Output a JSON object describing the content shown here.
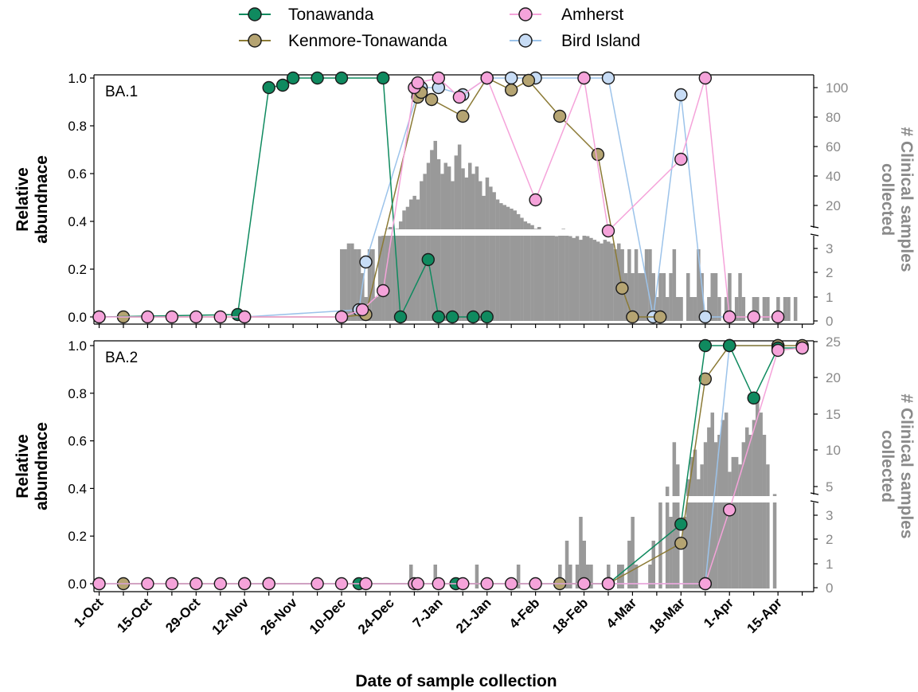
{
  "chart_data": {
    "type": "line",
    "xlabel": "Date of sample collection",
    "x_tick_labels": [
      "1-Oct",
      "15-Oct",
      "29-Oct",
      "12-Nov",
      "26-Nov",
      "10-Dec",
      "24-Dec",
      "7-Jan",
      "21-Jan",
      "4-Feb",
      "18-Feb",
      "4-Mar",
      "18-Mar",
      "1-Apr",
      "15-Apr"
    ],
    "legend": [
      {
        "name": "Tonawanda",
        "color": "#0f8a5f"
      },
      {
        "name": "Kenmore-Tonawanda",
        "color": "#b5a472"
      },
      {
        "name": "Amherst",
        "color": "#f5a3da"
      },
      {
        "name": "Bird Island",
        "color": "#c7dcf5"
      }
    ],
    "line_colors": {
      "Tonawanda": "#0f8a5f",
      "Kenmore-Tonawanda": "#8b7a35",
      "Amherst": "#f5a3da",
      "Bird Island": "#9cc3ea"
    },
    "bar_color": "#999999",
    "panels": [
      {
        "label": "BA.1",
        "ylabel_line1": "Relative",
        "ylabel_line2": "abundnace",
        "ylim": [
          0,
          1.0
        ],
        "yticks": [
          "0.0",
          "0.2",
          "0.4",
          "0.6",
          "0.8",
          "1.0"
        ],
        "right_ylabel_line1": "# Clinical samples",
        "right_ylabel_line2": "collected",
        "right_upper_ticks": [
          "20",
          "40",
          "60",
          "80",
          "100"
        ],
        "right_lower_ticks": [
          "0",
          "1",
          "2",
          "3"
        ],
        "series": [
          {
            "name": "Tonawanda",
            "points": [
              [
                0,
                0
              ],
              [
                40,
                0.01
              ],
              [
                49,
                0.96
              ],
              [
                53,
                0.97
              ],
              [
                56,
                1.0
              ],
              [
                63,
                1.0
              ],
              [
                70,
                1.0
              ],
              [
                82,
                1.0
              ],
              [
                87,
                0
              ],
              [
                95,
                0.24
              ],
              [
                98,
                0
              ],
              [
                102,
                0
              ],
              [
                108,
                0
              ],
              [
                112,
                0
              ]
            ]
          },
          {
            "name": "Kenmore-Tonawanda",
            "points": [
              [
                7,
                0
              ],
              [
                70,
                0
              ],
              [
                77,
                0.01
              ],
              [
                92,
                0.92
              ],
              [
                93,
                0.94
              ],
              [
                96,
                0.91
              ],
              [
                105,
                0.84
              ],
              [
                112,
                1.0
              ],
              [
                119,
                0.95
              ],
              [
                124,
                0.99
              ],
              [
                133,
                0.84
              ],
              [
                144,
                0.68
              ],
              [
                151,
                0.12
              ],
              [
                154,
                0
              ],
              [
                162,
                0
              ]
            ]
          },
          {
            "name": "Amherst",
            "points": [
              [
                0,
                0
              ],
              [
                14,
                0
              ],
              [
                21,
                0
              ],
              [
                28,
                0
              ],
              [
                35,
                0
              ],
              [
                42,
                0
              ],
              [
                70,
                0
              ],
              [
                76,
                0.03
              ],
              [
                82,
                0.11
              ],
              [
                91,
                0.96
              ],
              [
                92,
                0.98
              ],
              [
                98,
                1.0
              ],
              [
                104,
                0.92
              ],
              [
                112,
                1.0
              ],
              [
                126,
                0.49
              ],
              [
                140,
                1.0
              ],
              [
                147,
                0.36
              ],
              [
                168,
                0.66
              ],
              [
                175,
                1.0
              ],
              [
                182,
                0
              ],
              [
                189,
                0
              ],
              [
                196,
                0
              ]
            ]
          },
          {
            "name": "Bird Island",
            "points": [
              [
                42,
                0
              ],
              [
                75,
                0.03
              ],
              [
                77,
                0.23
              ],
              [
                92,
                0.94
              ],
              [
                93,
                0.96
              ],
              [
                98,
                0.96
              ],
              [
                105,
                0.93
              ],
              [
                112,
                1.0
              ],
              [
                119,
                1.0
              ],
              [
                126,
                1.0
              ],
              [
                140,
                1.0
              ],
              [
                147,
                1.0
              ],
              [
                160,
                0
              ],
              [
                168,
                0.93
              ],
              [
                175,
                0
              ],
              [
                182,
                0
              ]
            ]
          }
        ],
        "clinical_counts": [
          0,
          0,
          0,
          0,
          0,
          0,
          0,
          0,
          0,
          0,
          0,
          0,
          0,
          0,
          0,
          0,
          0,
          0,
          0,
          0,
          0,
          0,
          0,
          0,
          0,
          0,
          0,
          0,
          0,
          0,
          0,
          0,
          0,
          0,
          0,
          0,
          0,
          0,
          0,
          0,
          0,
          0,
          0,
          0,
          0,
          0,
          0,
          0,
          0,
          0,
          0,
          0,
          0,
          0,
          0,
          0,
          0,
          0,
          0,
          0,
          0,
          0,
          0,
          0,
          0,
          0,
          0,
          0,
          0,
          0,
          3,
          3,
          4,
          4,
          3,
          3,
          2,
          1,
          3,
          3,
          1,
          8,
          10,
          12,
          13,
          9,
          12,
          16,
          22,
          24,
          28,
          30,
          28,
          38,
          42,
          48,
          55,
          60,
          50,
          42,
          48,
          46,
          38,
          52,
          58,
          45,
          40,
          48,
          42,
          46,
          38,
          30,
          40,
          35,
          32,
          28,
          26,
          25,
          24,
          23,
          22,
          20,
          18,
          16,
          15,
          14,
          12,
          13,
          11,
          10,
          9,
          10,
          8,
          9,
          12,
          10,
          8,
          7,
          8,
          6,
          9,
          8,
          7,
          6,
          5,
          4,
          6,
          5,
          4,
          3,
          4,
          3,
          2,
          3,
          2,
          3,
          2,
          2,
          3,
          3,
          2,
          1,
          2,
          2,
          1,
          2,
          3,
          1,
          1,
          0,
          2,
          1,
          1,
          3,
          2,
          0,
          1,
          2,
          2,
          1,
          0,
          1,
          2,
          0,
          1,
          2,
          1,
          0,
          0,
          1,
          1,
          0,
          1,
          1,
          0,
          0,
          1,
          0,
          1,
          1,
          0,
          1
        ],
        "annotations": []
      },
      {
        "label": "BA.2",
        "ylabel_line1": "Relative",
        "ylabel_line2": "abundnace",
        "ylim": [
          0,
          1.0
        ],
        "yticks": [
          "0.0",
          "0.2",
          "0.4",
          "0.6",
          "0.8",
          "1.0"
        ],
        "right_ylabel_line1": "# Clinical samples",
        "right_ylabel_line2": "collected",
        "right_upper_ticks": [
          "5",
          "10",
          "15",
          "20",
          "25"
        ],
        "right_lower_ticks": [
          "0",
          "1",
          "2",
          "3"
        ],
        "series": [
          {
            "name": "Tonawanda",
            "points": [
              [
                0,
                0
              ],
              [
                49,
                0
              ],
              [
                75,
                0
              ],
              [
                103,
                0
              ],
              [
                147,
                0
              ],
              [
                168,
                0.25
              ],
              [
                175,
                1.0
              ],
              [
                182,
                1.0
              ],
              [
                189,
                0.78
              ],
              [
                196,
                0.99
              ],
              [
                203,
                0.99
              ]
            ]
          },
          {
            "name": "Kenmore-Tonawanda",
            "points": [
              [
                7,
                0
              ],
              [
                133,
                0
              ],
              [
                147,
                0
              ],
              [
                168,
                0.17
              ],
              [
                175,
                0.86
              ],
              [
                182,
                1.0
              ],
              [
                196,
                1.0
              ],
              [
                203,
                1.0
              ]
            ]
          },
          {
            "name": "Amherst",
            "points": [
              [
                0,
                0
              ],
              [
                14,
                0
              ],
              [
                21,
                0
              ],
              [
                28,
                0
              ],
              [
                35,
                0
              ],
              [
                42,
                0
              ],
              [
                49,
                0
              ],
              [
                63,
                0
              ],
              [
                70,
                0
              ],
              [
                77,
                0
              ],
              [
                91,
                0
              ],
              [
                92,
                0
              ],
              [
                98,
                0
              ],
              [
                105,
                0
              ],
              [
                112,
                0
              ],
              [
                119,
                0
              ],
              [
                126,
                0
              ],
              [
                140,
                0
              ],
              [
                147,
                0
              ],
              [
                175,
                0
              ],
              [
                182,
                0.31
              ],
              [
                196,
                0.98
              ],
              [
                203,
                0.99
              ]
            ]
          },
          {
            "name": "Bird Island",
            "points": [
              [
                42,
                0
              ],
              [
                147,
                0
              ],
              [
                175,
                0
              ],
              [
                182,
                1.0
              ],
              [
                196,
                1.0
              ]
            ]
          }
        ],
        "clinical_counts": [
          0,
          0,
          0,
          0,
          0,
          0,
          0,
          0,
          0,
          0,
          0,
          0,
          0,
          0,
          0,
          0,
          0,
          0,
          0,
          0,
          0,
          0,
          0,
          0,
          0,
          0,
          0,
          0,
          0,
          0,
          0,
          0,
          0,
          0,
          0,
          0,
          0,
          0,
          0,
          0,
          0,
          0,
          0,
          0,
          0,
          0,
          0,
          0,
          0,
          0,
          0,
          0,
          0,
          0,
          0,
          0,
          0,
          0,
          0,
          0,
          0,
          0,
          0,
          0,
          0,
          0,
          0,
          0,
          0,
          0,
          0,
          0,
          0,
          0,
          0,
          0,
          0,
          0,
          0,
          0,
          0,
          0,
          0,
          0,
          0,
          0,
          0,
          0,
          0,
          0,
          1,
          0,
          0,
          0,
          0,
          0,
          0,
          1,
          0,
          0,
          0,
          0,
          0,
          0,
          0,
          0,
          0,
          0,
          0,
          1,
          0,
          0,
          0,
          0,
          0,
          0,
          0,
          0,
          0,
          0,
          0,
          1,
          0,
          0,
          0,
          0,
          0,
          0,
          0,
          0,
          0,
          0,
          0,
          1,
          0,
          2,
          1,
          0,
          1,
          3,
          2,
          1,
          1,
          0,
          0,
          0,
          0,
          1,
          0,
          0,
          1,
          1,
          0,
          2,
          3,
          1,
          0,
          0,
          0,
          1,
          2,
          0,
          4,
          0,
          6,
          3,
          12,
          9,
          0,
          3,
          7,
          10,
          11,
          7,
          9,
          12,
          14,
          16,
          12,
          13,
          15,
          16,
          8,
          10,
          10,
          9,
          12,
          14,
          13,
          15,
          18,
          16,
          13,
          9,
          0,
          5
        ],
        "annotations": []
      }
    ]
  }
}
